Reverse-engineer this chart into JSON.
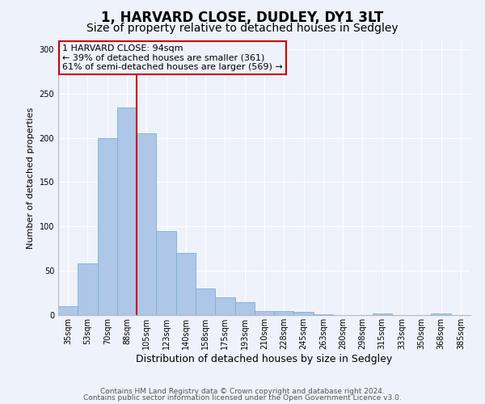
{
  "title": "1, HARVARD CLOSE, DUDLEY, DY1 3LT",
  "subtitle": "Size of property relative to detached houses in Sedgley",
  "xlabel": "Distribution of detached houses by size in Sedgley",
  "ylabel": "Number of detached properties",
  "categories": [
    "35sqm",
    "53sqm",
    "70sqm",
    "88sqm",
    "105sqm",
    "123sqm",
    "140sqm",
    "158sqm",
    "175sqm",
    "193sqm",
    "210sqm",
    "228sqm",
    "245sqm",
    "263sqm",
    "280sqm",
    "298sqm",
    "315sqm",
    "333sqm",
    "350sqm",
    "368sqm",
    "385sqm"
  ],
  "values": [
    10,
    58,
    200,
    234,
    205,
    95,
    70,
    30,
    20,
    15,
    5,
    5,
    4,
    1,
    0,
    0,
    2,
    0,
    0,
    2,
    0
  ],
  "bar_color": "#aec6e8",
  "bar_edge_color": "#7aafd4",
  "property_line_x": 3.5,
  "property_line_color": "#cc0000",
  "annotation_text": "1 HARVARD CLOSE: 94sqm\n← 39% of detached houses are smaller (361)\n61% of semi-detached houses are larger (569) →",
  "annotation_box_color": "#cc0000",
  "ylim": [
    0,
    310
  ],
  "yticks": [
    0,
    50,
    100,
    150,
    200,
    250,
    300
  ],
  "background_color": "#eef2fa",
  "footer_line1": "Contains HM Land Registry data © Crown copyright and database right 2024.",
  "footer_line2": "Contains public sector information licensed under the Open Government Licence v3.0.",
  "title_fontsize": 12,
  "subtitle_fontsize": 10,
  "xlabel_fontsize": 9,
  "ylabel_fontsize": 8,
  "tick_fontsize": 7,
  "annotation_fontsize": 8,
  "footer_fontsize": 6.5
}
